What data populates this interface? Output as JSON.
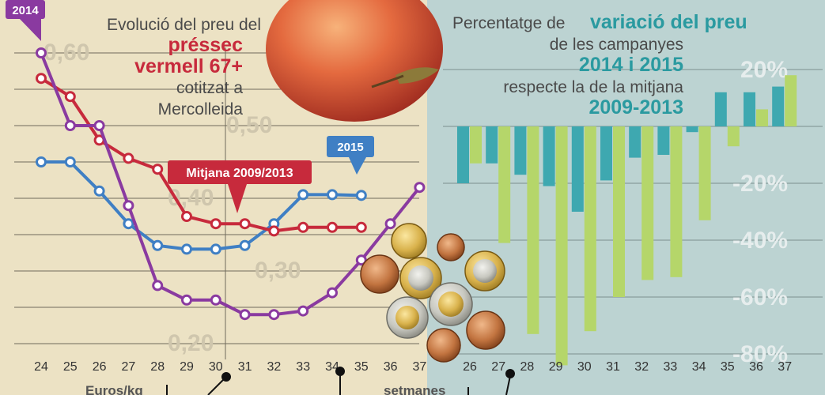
{
  "left_title": {
    "line1": "Evolució del preu del",
    "line2": "préssec",
    "line3": "vermell 67+",
    "line4": "cotitzat a",
    "line5": "Mercolleida"
  },
  "right_title": {
    "line1a": "Percentatge de",
    "line1b": "variació del preu",
    "line2": "de les campanyes",
    "line3": "2014 i 2015",
    "line4": "respecte la de la mitjana",
    "line5": "2009-2013"
  },
  "bottom": {
    "left_unit": "Euros/kg",
    "weeks_label": "setmanes"
  },
  "colors": {
    "bg_left": "#ece2c4",
    "bg_right": "#bcd3d2",
    "series_2014": "#8a3aa0",
    "series_2015": "#3f7fc4",
    "series_mitjana": "#c72a3c",
    "bar_2014": "#3ea8b0",
    "bar_2015": "#b5d66a",
    "title_accent": "#c72a3c",
    "title_accent_right": "#2a9aa0"
  },
  "chart_data": [
    {
      "type": "line",
      "title": "Evolució del preu del préssec vermell 67+ cotitzat a Mercolleida",
      "ylabel": "Euros/kg",
      "xlabel": "setmanes",
      "x": [
        24,
        25,
        26,
        27,
        28,
        29,
        30,
        31,
        32,
        33,
        34,
        35,
        36,
        37
      ],
      "y_ticks": [
        "0,60",
        "0,50",
        "0,40",
        "0,30",
        "0,20"
      ],
      "ylim": [
        0.2,
        0.6
      ],
      "series": [
        {
          "name": "2014",
          "x": [
            24,
            25,
            26,
            27,
            28,
            29,
            30,
            31,
            32,
            33,
            34,
            35,
            36,
            37
          ],
          "values": [
            0.6,
            0.5,
            0.5,
            0.39,
            0.28,
            0.26,
            0.26,
            0.24,
            0.24,
            0.245,
            0.27,
            0.315,
            0.365,
            0.415
          ]
        },
        {
          "name": "2015",
          "x": [
            24,
            25,
            26,
            27,
            28,
            29,
            30,
            31,
            32,
            33,
            34,
            35
          ],
          "values": [
            0.45,
            0.45,
            0.41,
            0.365,
            0.335,
            0.33,
            0.33,
            0.335,
            0.365,
            0.405,
            0.405,
            0.404
          ]
        },
        {
          "name": "Mitjana 2009/2013",
          "x": [
            24,
            25,
            26,
            27,
            28,
            29,
            30,
            31,
            32,
            33,
            34,
            35
          ],
          "values": [
            0.565,
            0.54,
            0.48,
            0.455,
            0.44,
            0.375,
            0.365,
            0.365,
            0.355,
            0.36,
            0.36,
            0.36
          ]
        }
      ],
      "labels": {
        "series_2014": "2014",
        "series_2015": "2015",
        "series_mitjana": "Mitjana 2009/2013"
      }
    },
    {
      "type": "bar",
      "title": "Percentatge de variació del preu de les campanyes 2014 i 2015 respecte la de la mitjana 2009-2013",
      "xlabel": "setmanes",
      "categories": [
        "26",
        "27",
        "28",
        "29",
        "30",
        "31",
        "32",
        "33",
        "34",
        "35",
        "36",
        "37"
      ],
      "y_ticks": [
        "20%",
        "-20%",
        "-40%",
        "-60%",
        "-80%"
      ],
      "ylim": [
        -88,
        22
      ],
      "series": [
        {
          "name": "2014",
          "values": [
            -20,
            -13,
            -17,
            -21,
            -30,
            -19,
            -11,
            -10,
            -2,
            12,
            12,
            14
          ]
        },
        {
          "name": "2015",
          "values": [
            -13,
            -41,
            -73,
            -84,
            -72,
            -60,
            -54,
            -53,
            -33,
            -7,
            6,
            18
          ]
        }
      ]
    }
  ]
}
